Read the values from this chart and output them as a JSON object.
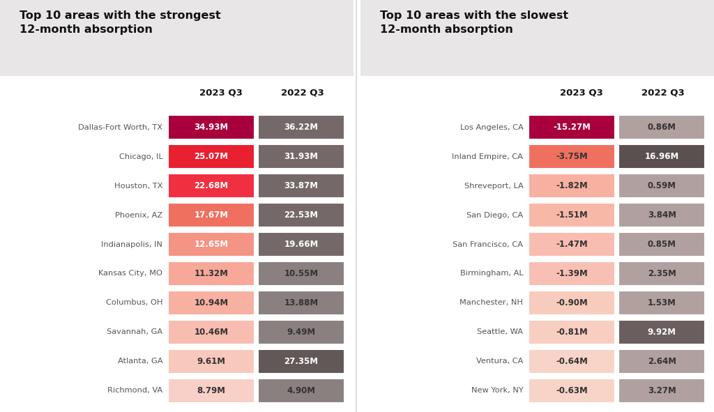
{
  "left_title": "Top 10 areas with the strongest\n12-month absorption",
  "right_title": "Top 10 areas with the slowest\n12-month absorption",
  "col_header_2023": "2023 Q3",
  "col_header_2022": "2022 Q3",
  "left_areas": [
    "Dallas-Fort Worth, TX",
    "Chicago, IL",
    "Houston, TX",
    "Phoenix, AZ",
    "Indianapolis, IN",
    "Kansas City, MO",
    "Columbus, OH",
    "Savannah, GA",
    "Atlanta, GA",
    "Richmond, VA"
  ],
  "left_2023": [
    "34.93M",
    "25.07M",
    "22.68M",
    "17.67M",
    "12.65M",
    "11.32M",
    "10.94M",
    "10.46M",
    "9.61M",
    "8.79M"
  ],
  "left_2022": [
    "36.22M",
    "31.93M",
    "33.87M",
    "22.53M",
    "19.66M",
    "10.55M",
    "13.88M",
    "9.49M",
    "27.35M",
    "4.90M"
  ],
  "left_2023_colors": [
    "#a8003c",
    "#e82030",
    "#f03040",
    "#f07060",
    "#f49484",
    "#f8a898",
    "#f8b0a0",
    "#f8bdb0",
    "#f8c8bc",
    "#f8d0c8"
  ],
  "left_2022_colors": [
    "#756868",
    "#756868",
    "#756868",
    "#756868",
    "#756868",
    "#8a8080",
    "#8a8080",
    "#8a8080",
    "#635858",
    "#8a8080"
  ],
  "left_2023_text_colors": [
    "#ffffff",
    "#ffffff",
    "#ffffff",
    "#ffffff",
    "#ffffff",
    "#333333",
    "#333333",
    "#333333",
    "#333333",
    "#333333"
  ],
  "left_2022_text_colors": [
    "#ffffff",
    "#ffffff",
    "#ffffff",
    "#ffffff",
    "#ffffff",
    "#333333",
    "#333333",
    "#333333",
    "#ffffff",
    "#333333"
  ],
  "right_areas": [
    "Los Angeles, CA",
    "Inland Empire, CA",
    "Shreveport, LA",
    "San Diego, CA",
    "San Francisco, CA",
    "Birmingham, AL",
    "Manchester, NH",
    "Seattle, WA",
    "Ventura, CA",
    "New York, NY"
  ],
  "right_2023": [
    "-15.27M",
    "-3.75M",
    "-1.82M",
    "-1.51M",
    "-1.47M",
    "-1.39M",
    "-0.90M",
    "-0.81M",
    "-0.64M",
    "-0.63M"
  ],
  "right_2022": [
    "0.86M",
    "16.96M",
    "0.59M",
    "3.84M",
    "0.85M",
    "2.35M",
    "1.53M",
    "9.92M",
    "2.64M",
    "3.27M"
  ],
  "right_2023_colors": [
    "#a8003c",
    "#f07060",
    "#f8b0a0",
    "#f8b8a8",
    "#f8bdb0",
    "#f8c0b4",
    "#f8ccbc",
    "#f8cec0",
    "#f8d4c8",
    "#f8d4c8"
  ],
  "right_2022_colors": [
    "#b0a0a0",
    "#5a5050",
    "#b0a0a0",
    "#b0a0a0",
    "#b0a0a0",
    "#b0a0a0",
    "#b0a0a0",
    "#6a5e5e",
    "#b0a0a0",
    "#b0a0a0"
  ],
  "right_2023_text_colors": [
    "#ffffff",
    "#333333",
    "#333333",
    "#333333",
    "#333333",
    "#333333",
    "#333333",
    "#333333",
    "#333333",
    "#333333"
  ],
  "right_2022_text_colors": [
    "#333333",
    "#ffffff",
    "#333333",
    "#333333",
    "#333333",
    "#333333",
    "#333333",
    "#ffffff",
    "#333333",
    "#333333"
  ],
  "background_color": "#ffffff",
  "header_bg": "#e8e6e6",
  "divider_color": "#dddddd"
}
